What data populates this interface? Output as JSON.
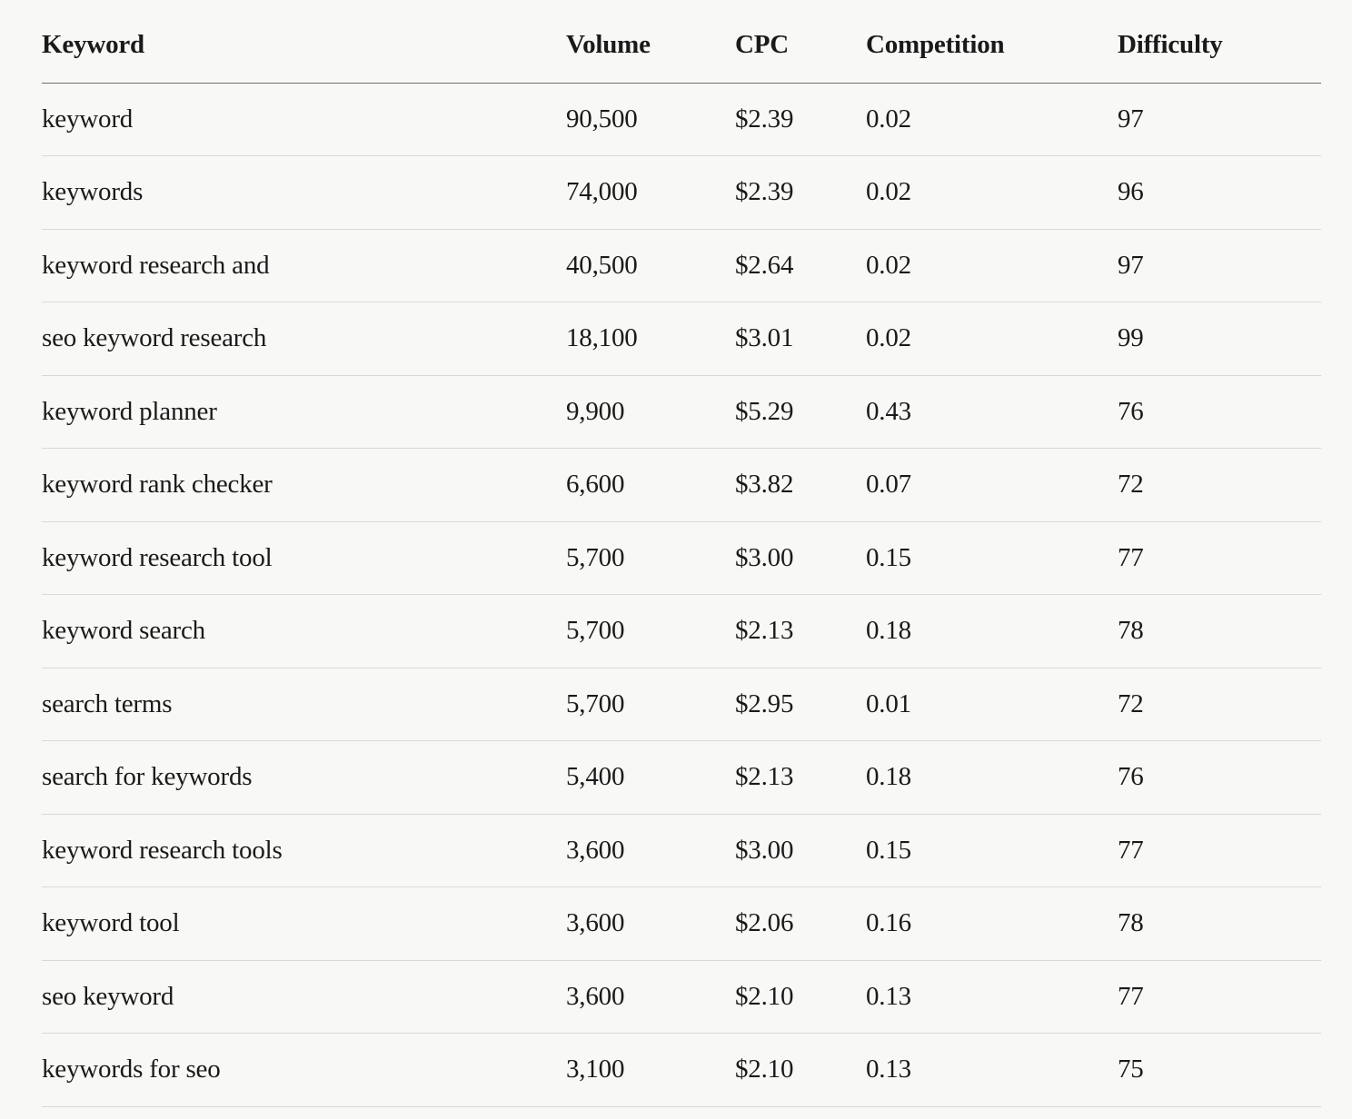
{
  "table": {
    "headers": {
      "keyword": "Keyword",
      "volume": "Volume",
      "cpc": "CPC",
      "competition": "Competition",
      "difficulty": "Difficulty"
    },
    "rows": [
      {
        "keyword": "keyword",
        "volume": "90,500",
        "cpc": "$2.39",
        "competition": "0.02",
        "difficulty": "97"
      },
      {
        "keyword": "keywords",
        "volume": "74,000",
        "cpc": "$2.39",
        "competition": "0.02",
        "difficulty": "96"
      },
      {
        "keyword": "keyword research and",
        "volume": "40,500",
        "cpc": "$2.64",
        "competition": "0.02",
        "difficulty": "97"
      },
      {
        "keyword": "seo keyword research",
        "volume": "18,100",
        "cpc": "$3.01",
        "competition": "0.02",
        "difficulty": "99"
      },
      {
        "keyword": "keyword planner",
        "volume": "9,900",
        "cpc": "$5.29",
        "competition": "0.43",
        "difficulty": "76"
      },
      {
        "keyword": "keyword rank checker",
        "volume": "6,600",
        "cpc": "$3.82",
        "competition": "0.07",
        "difficulty": "72"
      },
      {
        "keyword": "keyword research tool",
        "volume": "5,700",
        "cpc": "$3.00",
        "competition": "0.15",
        "difficulty": "77"
      },
      {
        "keyword": "keyword search",
        "volume": "5,700",
        "cpc": "$2.13",
        "competition": "0.18",
        "difficulty": "78"
      },
      {
        "keyword": "search terms",
        "volume": "5,700",
        "cpc": "$2.95",
        "competition": "0.01",
        "difficulty": "72"
      },
      {
        "keyword": "search for keywords",
        "volume": "5,400",
        "cpc": "$2.13",
        "competition": "0.18",
        "difficulty": "76"
      },
      {
        "keyword": "keyword research tools",
        "volume": "3,600",
        "cpc": "$3.00",
        "competition": "0.15",
        "difficulty": "77"
      },
      {
        "keyword": "keyword tool",
        "volume": "3,600",
        "cpc": "$2.06",
        "competition": "0.16",
        "difficulty": "78"
      },
      {
        "keyword": "seo keyword",
        "volume": "3,600",
        "cpc": "$2.10",
        "competition": "0.13",
        "difficulty": "77"
      },
      {
        "keyword": "keywords for seo",
        "volume": "3,100",
        "cpc": "$2.10",
        "competition": "0.13",
        "difficulty": "75"
      }
    ]
  }
}
